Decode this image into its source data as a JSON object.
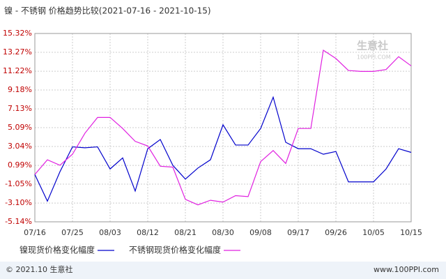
{
  "chart_data": {
    "type": "line",
    "title": "镍 - 不锈钢 价格趋势比较(2021-07-16 - 2021-10-15)",
    "categories": [
      "07/16",
      null,
      null,
      "07/25",
      null,
      null,
      "08/03",
      null,
      null,
      "08/12",
      null,
      null,
      "08/21",
      null,
      null,
      "08/30",
      null,
      null,
      "09/08",
      null,
      null,
      "09/17",
      null,
      null,
      "09/26",
      null,
      null,
      "10/05",
      null,
      null,
      "10/15"
    ],
    "series": [
      {
        "name": "镍现货价格变化幅度",
        "color": "#0000cc",
        "values": [
          0.0,
          -2.9,
          0.3,
          3.0,
          2.9,
          3.0,
          0.6,
          1.8,
          -1.8,
          2.8,
          3.8,
          1.0,
          -0.5,
          0.7,
          1.6,
          5.4,
          3.2,
          3.2,
          5.0,
          8.4,
          3.5,
          2.8,
          2.8,
          2.2,
          2.5,
          -0.8,
          -0.8,
          -0.8,
          0.6,
          2.8,
          2.4
        ]
      },
      {
        "name": "不锈钢现货价格变化幅度",
        "color": "#e020e0",
        "values": [
          0.0,
          1.6,
          1.0,
          2.2,
          4.5,
          6.2,
          6.2,
          5.0,
          3.6,
          3.1,
          0.9,
          0.8,
          -2.7,
          -3.3,
          -2.8,
          -3.0,
          -2.3,
          -2.4,
          1.4,
          2.6,
          1.2,
          5.0,
          5.0,
          13.5,
          12.6,
          11.3,
          11.2,
          11.2,
          11.4,
          12.8,
          11.8
        ]
      }
    ],
    "ylim": [
      -5.14,
      15.32
    ],
    "yticks": [
      {
        "value": 15.32,
        "label": "15.32%"
      },
      {
        "value": 13.27,
        "label": "13.27%"
      },
      {
        "value": 11.22,
        "label": "11.22%"
      },
      {
        "value": 9.18,
        "label": "9.18%"
      },
      {
        "value": 7.13,
        "label": "7.13%"
      },
      {
        "value": 5.09,
        "label": "5.09%"
      },
      {
        "value": 3.04,
        "label": "3.04%"
      },
      {
        "value": 0.99,
        "label": "0.99%"
      },
      {
        "value": -1.05,
        "label": "-1.05%"
      },
      {
        "value": -3.1,
        "label": "-3.10%"
      },
      {
        "value": -5.14,
        "label": "-5.14%"
      }
    ],
    "grid": true,
    "watermark": {
      "name": "生意社",
      "site": "100PPI.COM"
    },
    "footer": {
      "left": "© 2021.10 生意社",
      "right": "www.100PPI.com"
    }
  }
}
